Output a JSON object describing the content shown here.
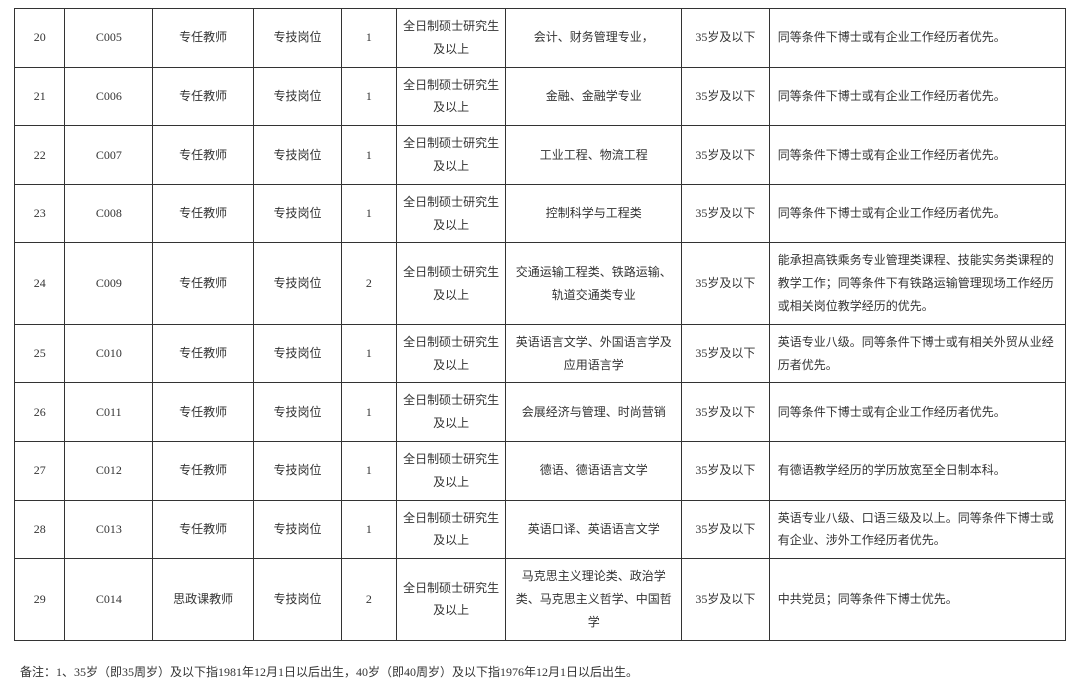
{
  "table": {
    "column_count": 9,
    "col_classes": [
      "c0",
      "c1",
      "c2",
      "c3",
      "c4",
      "c5",
      "c6",
      "c7",
      "c8"
    ],
    "cell_align": [
      "center",
      "center",
      "center",
      "center",
      "center",
      "center",
      "center",
      "center",
      "left"
    ],
    "border_color": "#333333",
    "text_color": "#333333",
    "font_size_pt": 9,
    "line_height": 1.9,
    "background_color": "#ffffff",
    "rows": [
      [
        "20",
        "C005",
        "专任教师",
        "专技岗位",
        "1",
        "全日制硕士研究生及以上",
        "会计、财务管理专业，",
        "35岁及以下",
        "同等条件下博士或有企业工作经历者优先。"
      ],
      [
        "21",
        "C006",
        "专任教师",
        "专技岗位",
        "1",
        "全日制硕士研究生及以上",
        "金融、金融学专业",
        "35岁及以下",
        "同等条件下博士或有企业工作经历者优先。"
      ],
      [
        "22",
        "C007",
        "专任教师",
        "专技岗位",
        "1",
        "全日制硕士研究生及以上",
        "工业工程、物流工程",
        "35岁及以下",
        "同等条件下博士或有企业工作经历者优先。"
      ],
      [
        "23",
        "C008",
        "专任教师",
        "专技岗位",
        "1",
        "全日制硕士研究生及以上",
        "控制科学与工程类",
        "35岁及以下",
        "同等条件下博士或有企业工作经历者优先。"
      ],
      [
        "24",
        "C009",
        "专任教师",
        "专技岗位",
        "2",
        "全日制硕士研究生及以上",
        "交通运输工程类、铁路运输、轨道交通类专业",
        "35岁及以下",
        "能承担高铁乘务专业管理类课程、技能实务类课程的教学工作；同等条件下有铁路运输管理现场工作经历或相关岗位教学经历的优先。"
      ],
      [
        "25",
        "C010",
        "专任教师",
        "专技岗位",
        "1",
        "全日制硕士研究生及以上",
        "英语语言文学、外国语言学及应用语言学",
        "35岁及以下",
        "英语专业八级。同等条件下博士或有相关外贸从业经历者优先。"
      ],
      [
        "26",
        "C011",
        "专任教师",
        "专技岗位",
        "1",
        "全日制硕士研究生及以上",
        "会展经济与管理、时尚营销",
        "35岁及以下",
        "同等条件下博士或有企业工作经历者优先。"
      ],
      [
        "27",
        "C012",
        "专任教师",
        "专技岗位",
        "1",
        "全日制硕士研究生及以上",
        "德语、德语语言文学",
        "35岁及以下",
        "有德语教学经历的学历放宽至全日制本科。"
      ],
      [
        "28",
        "C013",
        "专任教师",
        "专技岗位",
        "1",
        "全日制硕士研究生及以上",
        "英语口译、英语语言文学",
        "35岁及以下",
        "英语专业八级、口语三级及以上。同等条件下博士或有企业、涉外工作经历者优先。"
      ],
      [
        "29",
        "C014",
        "思政课教师",
        "专技岗位",
        "2",
        "全日制硕士研究生及以上",
        "马克思主义理论类、政治学类、马克思主义哲学、中国哲学",
        "35岁及以下",
        "中共党员；同等条件下博士优先。"
      ]
    ]
  },
  "note": "备注：1、35岁（即35周岁）及以下指1981年12月1日以后出生，40岁（即40周岁）及以下指1976年12月1日以后出生。"
}
